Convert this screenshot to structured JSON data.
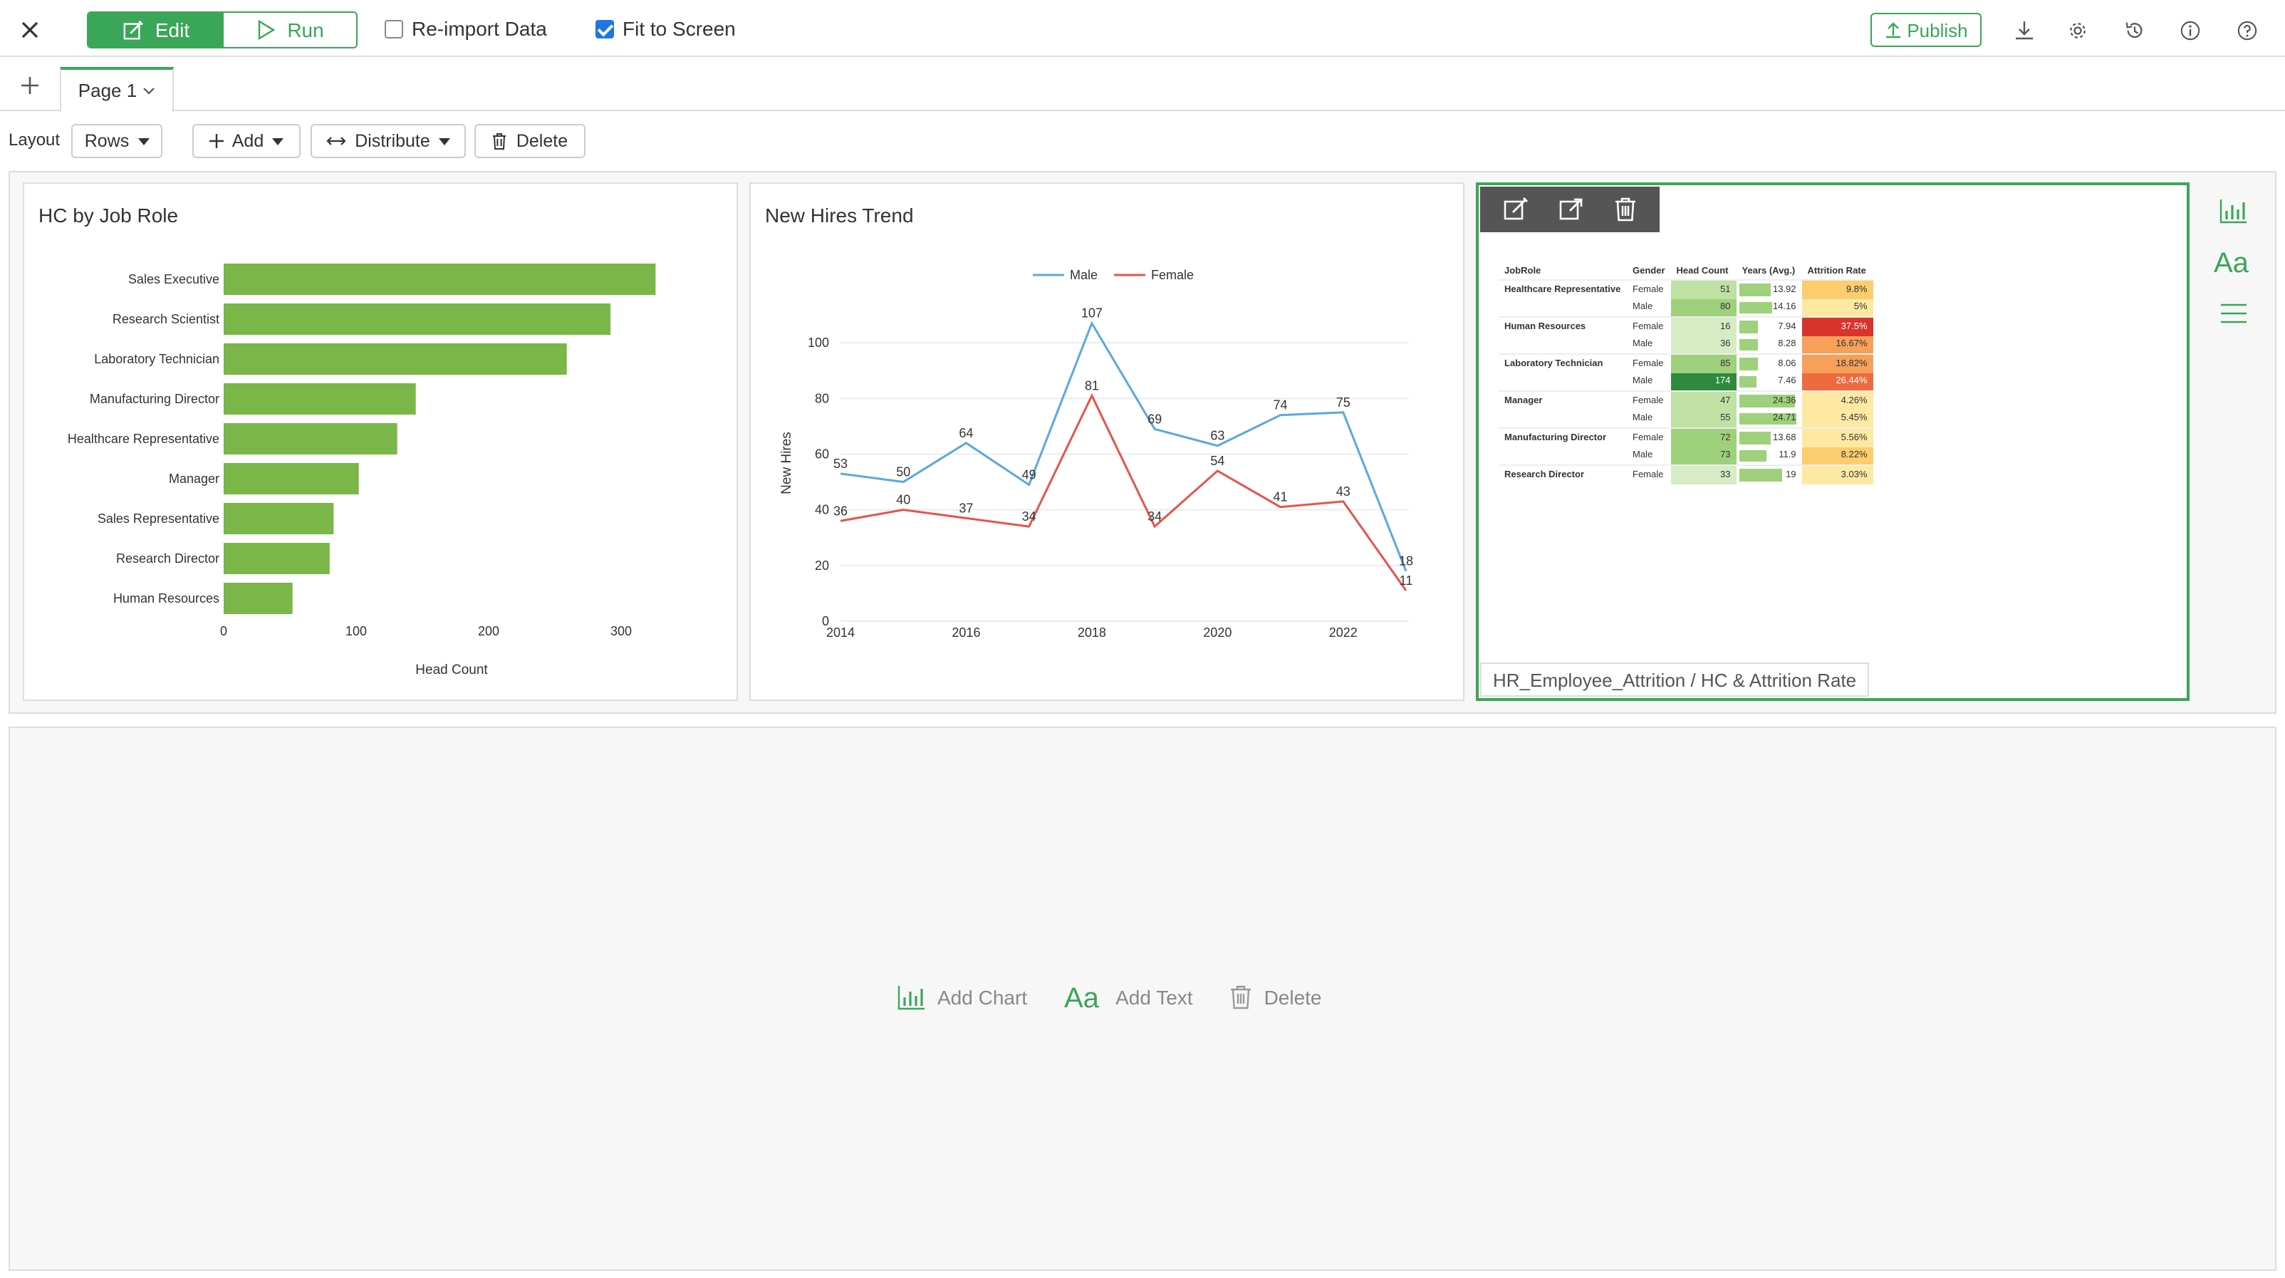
{
  "topbar": {
    "edit_label": "Edit",
    "run_label": "Run",
    "reimport_label": "Re-import Data",
    "reimport_checked": false,
    "fit_label": "Fit to Screen",
    "fit_checked": true,
    "publish_label": "Publish",
    "icons": [
      "download-icon",
      "gear-icon",
      "history-icon",
      "info-icon",
      "help-icon"
    ]
  },
  "tabs": {
    "page_label": "Page 1"
  },
  "layout_bar": {
    "layout_label": "Layout",
    "rows_label": "Rows",
    "add_label": "Add",
    "distribute_label": "Distribute",
    "delete_label": "Delete"
  },
  "colors": {
    "accent": "#3aa657",
    "bar": "#7ab648",
    "male": "#5aa8e0",
    "female": "#e5544b"
  },
  "card1": {
    "title": "HC by Job Role",
    "chart_data": {
      "type": "bar",
      "orientation": "horizontal",
      "categories": [
        "Sales Executive",
        "Research Scientist",
        "Laboratory Technician",
        "Manufacturing Director",
        "Healthcare Representative",
        "Manager",
        "Sales Representative",
        "Research Director",
        "Human Resources"
      ],
      "values": [
        326,
        292,
        259,
        145,
        131,
        102,
        83,
        80,
        52
      ],
      "xlabel": "Head Count",
      "xticks": [
        "0",
        "100",
        "200",
        "300"
      ],
      "xlim": [
        0,
        340
      ]
    }
  },
  "card2": {
    "title": "New Hires Trend",
    "chart_data": {
      "type": "line",
      "x": [
        2014,
        2015,
        2016,
        2017,
        2018,
        2019,
        2020,
        2021,
        2022,
        2023
      ],
      "series": [
        {
          "name": "Male",
          "values": [
            53,
            50,
            64,
            49,
            107,
            69,
            63,
            74,
            75,
            18
          ]
        },
        {
          "name": "Female",
          "values": [
            36,
            40,
            37,
            34,
            81,
            34,
            54,
            41,
            43,
            11
          ]
        }
      ],
      "ylabel": "New Hires",
      "ylim": [
        0,
        110
      ],
      "yticks": [
        "0",
        "20",
        "40",
        "60",
        "80",
        "100"
      ],
      "xticks": [
        "2014",
        "2016",
        "2018",
        "2020",
        "2022"
      ],
      "legend": "top"
    }
  },
  "card3": {
    "source": "HR_Employee_Attrition / HC & Attrition Rate",
    "table": {
      "headers": [
        "JobRole",
        "Gender",
        "Head Count",
        "Years (Avg.)",
        "Attrition Rate"
      ],
      "rows": [
        {
          "role": "Healthcare Representative",
          "gender": "Female",
          "hc": "51",
          "yrs": "13.92",
          "rate": "9.8%"
        },
        {
          "role": "",
          "gender": "Male",
          "hc": "80",
          "yrs": "14.16",
          "rate": "5%"
        },
        {
          "role": "Human Resources",
          "gender": "Female",
          "hc": "16",
          "yrs": "7.94",
          "rate": "37.5%"
        },
        {
          "role": "",
          "gender": "Male",
          "hc": "36",
          "yrs": "8.28",
          "rate": "16.67%"
        },
        {
          "role": "Laboratory Technician",
          "gender": "Female",
          "hc": "85",
          "yrs": "8.06",
          "rate": "18.82%"
        },
        {
          "role": "",
          "gender": "Male",
          "hc": "174",
          "yrs": "7.46",
          "rate": "26.44%"
        },
        {
          "role": "Manager",
          "gender": "Female",
          "hc": "47",
          "yrs": "24.36",
          "rate": "4.26%"
        },
        {
          "role": "",
          "gender": "Male",
          "hc": "55",
          "yrs": "24.71",
          "rate": "5.45%"
        },
        {
          "role": "Manufacturing Director",
          "gender": "Female",
          "hc": "72",
          "yrs": "13.68",
          "rate": "5.56%"
        },
        {
          "role": "",
          "gender": "Male",
          "hc": "73",
          "yrs": "11.9",
          "rate": "8.22%"
        },
        {
          "role": "Research Director",
          "gender": "Female",
          "hc": "33",
          "yrs": "19",
          "rate": "3.03%"
        }
      ]
    }
  },
  "empty_row": {
    "add_chart_label": "Add Chart",
    "add_text_label": "Add Text",
    "delete_label": "Delete"
  }
}
